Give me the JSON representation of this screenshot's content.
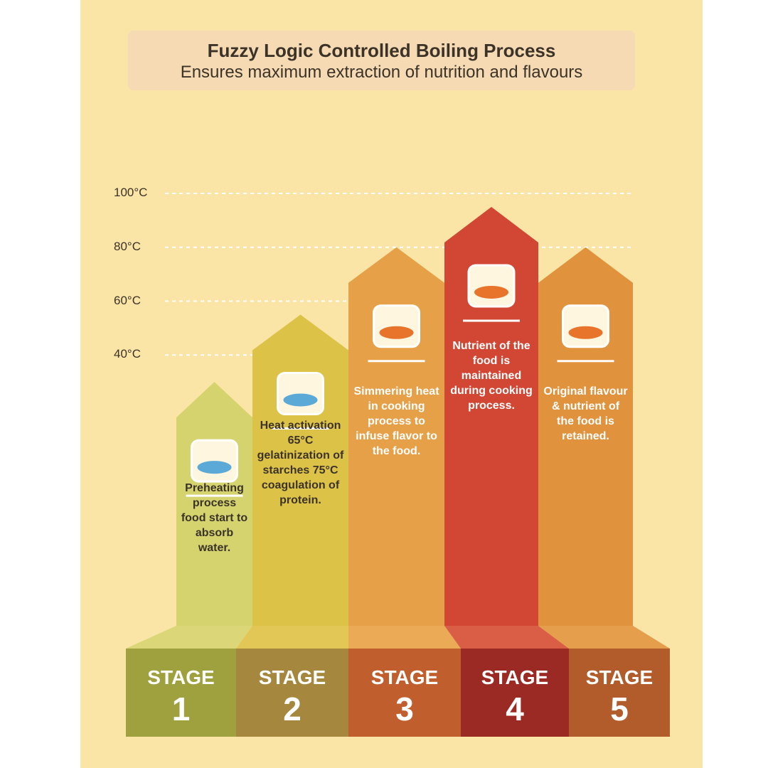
{
  "chart_data": {
    "type": "bar",
    "title": "Fuzzy Logic Controlled Boiling Process",
    "subtitle": "Ensures maximum extraction of nutrition and flavours",
    "y_ticks": [
      "40°C",
      "60°C",
      "80°C",
      "100°C"
    ],
    "ylim": [
      20,
      100
    ],
    "grid": "dashed horizontal lines",
    "categories": [
      "STAGE 1",
      "STAGE 2",
      "STAGE 3",
      "STAGE 4",
      "STAGE 5"
    ],
    "values": [
      30,
      55,
      80,
      95,
      80
    ],
    "stages": [
      {
        "word": "STAGE",
        "number": "1",
        "description": "Preheating process food start to absorb water.",
        "color": "#d5d36e",
        "base_color": "#9fa13f"
      },
      {
        "word": "STAGE",
        "number": "2",
        "description": "Heat activation 65°C gelatinization of starches 75°C coagulation of protein.",
        "color": "#ddc248",
        "base_color": "#a5873e"
      },
      {
        "word": "STAGE",
        "number": "3",
        "description": "Simmering heat in cooking process to infuse flavor to the food.",
        "color": "#e6a048",
        "base_color": "#c05f2d"
      },
      {
        "word": "STAGE",
        "number": "4",
        "description": "Nutrient of the food is maintained during cooking process.",
        "color": "#d24634",
        "base_color": "#9c2a24"
      },
      {
        "word": "STAGE",
        "number": "5",
        "description": "Original flavour & nutrient of the food is retained.",
        "color": "#e0923c",
        "base_color": "#b35c2b"
      }
    ]
  }
}
